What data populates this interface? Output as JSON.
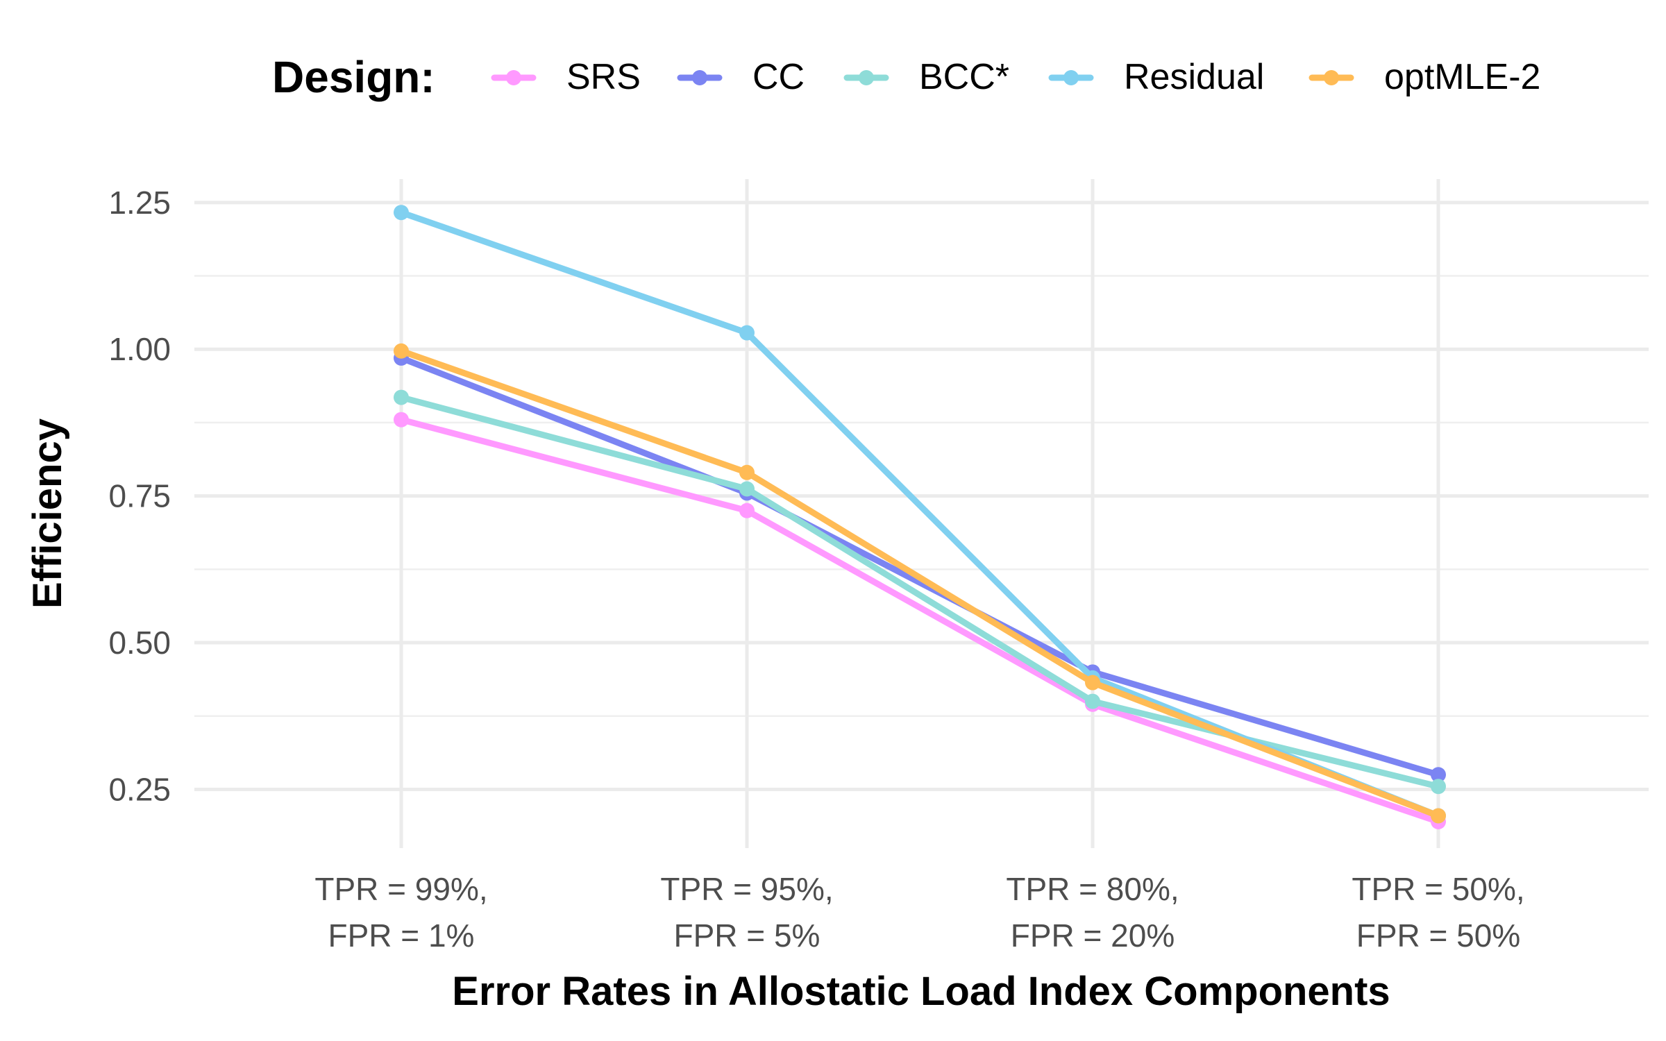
{
  "chart_data": {
    "type": "line",
    "xlabel": "Error Rates in Allostatic Load Index Components",
    "ylabel": "Efficiency",
    "ylim": [
      0.15,
      1.29
    ],
    "yticks": [
      "0.25",
      "0.50",
      "0.75",
      "1.00",
      "1.25"
    ],
    "categories": [
      [
        "TPR = 99%,",
        "FPR = 1%"
      ],
      [
        "TPR = 95%,",
        "FPR = 5%"
      ],
      [
        "TPR = 80%,",
        "FPR = 20%"
      ],
      [
        "TPR = 50%,",
        "FPR = 50%"
      ]
    ],
    "grid": true,
    "legend": {
      "title": "Design:",
      "position": "top"
    },
    "series": [
      {
        "name": "SRS",
        "color": "#ff99ff",
        "values": [
          0.88,
          0.725,
          0.395,
          0.195
        ]
      },
      {
        "name": "CC",
        "color": "#7b84f2",
        "values": [
          0.985,
          0.755,
          0.45,
          0.275
        ]
      },
      {
        "name": "BCC*",
        "color": "#8edcd8",
        "values": [
          0.918,
          0.762,
          0.4,
          0.255
        ]
      },
      {
        "name": "Residual",
        "color": "#80d0f0",
        "values": [
          1.233,
          1.028,
          0.44,
          0.205
        ]
      },
      {
        "name": "optMLE-2",
        "color": "#ffbb55",
        "values": [
          0.997,
          0.79,
          0.432,
          0.205
        ]
      }
    ]
  }
}
